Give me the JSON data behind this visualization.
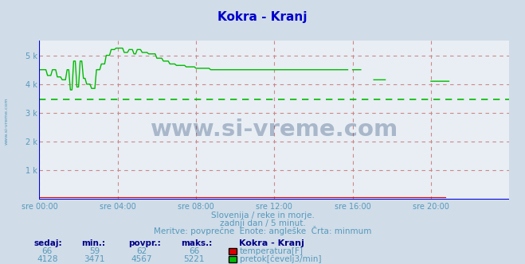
{
  "title": "Kokra - Kranj",
  "title_color": "#0000cc",
  "bg_color": "#d0dce8",
  "plot_bg_color": "#e8eef4",
  "grid_color": "#cc8888",
  "axis_color": "#0000dd",
  "xlabel_ticks": [
    "sre 00:00",
    "sre 04:00",
    "sre 08:00",
    "sre 12:00",
    "sre 16:00",
    "sre 20:00"
  ],
  "xtick_positions": [
    0,
    48,
    96,
    144,
    192,
    240
  ],
  "ylim": [
    0,
    5500
  ],
  "yticks": [
    0,
    1000,
    2000,
    3000,
    4000,
    5000
  ],
  "ytick_labels": [
    "",
    "1 k",
    "2 k",
    "3 k",
    "4 k",
    "5 k"
  ],
  "total_points": 288,
  "min_line_value": 3471,
  "temp_color": "#dd0000",
  "flow_color": "#00bb00",
  "subtitle1": "Slovenija / reke in morje.",
  "subtitle2": "zadnji dan / 5 minut.",
  "subtitle3": "Meritve: povprečne  Enote: angleške  Črta: minmum",
  "subtitle_color": "#5599bb",
  "legend_title": "Kokra - Kranj",
  "legend_color": "#000088",
  "table_headers": [
    "sedaj:",
    "min.:",
    "povpr.:",
    "maks.:"
  ],
  "table_values_temp": [
    "66",
    "59",
    "62",
    "66"
  ],
  "table_values_flow": [
    "4128",
    "3471",
    "4567",
    "5221"
  ],
  "table_label_temp": "temperatura[F]",
  "table_label_flow": "pretok[čevelj3/min]",
  "watermark": "www.si-vreme.com",
  "watermark_color": "#1a3a6a",
  "left_label": "www.si-vreme.com",
  "left_label_color": "#5599bb"
}
